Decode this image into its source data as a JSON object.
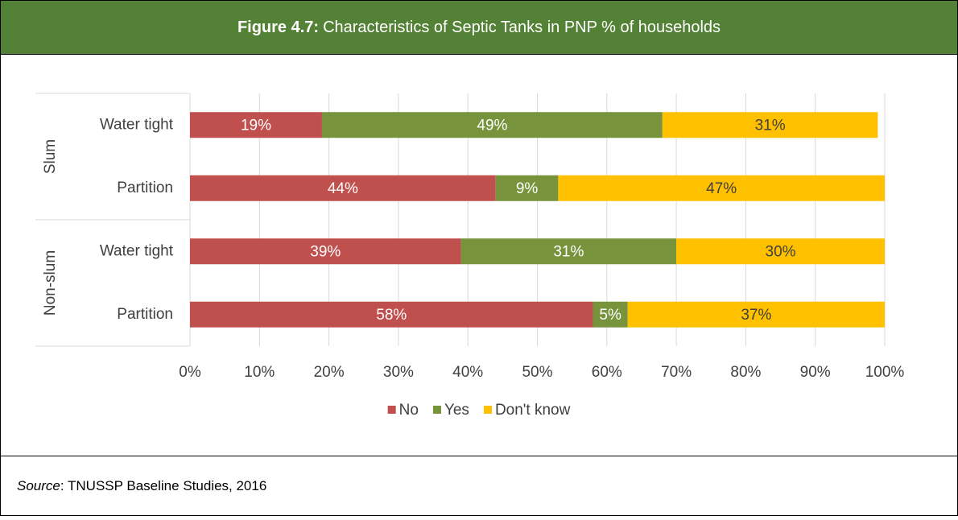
{
  "chart_data": {
    "type": "stacked_barh",
    "title_label": "Figure 4.7:",
    "title": "Characteristics of Septic Tanks in PNP % of households",
    "groups": [
      {
        "label": "Slum",
        "categories": [
          "Water tight",
          "Partition"
        ]
      },
      {
        "label": "Non-slum",
        "categories": [
          "Water tight",
          "Partition"
        ]
      }
    ],
    "series": [
      {
        "name": "No",
        "color": "#c0504d",
        "values": [
          19,
          44,
          39,
          58
        ],
        "value_labels": [
          "19%",
          "44%",
          "39%",
          "58%"
        ]
      },
      {
        "name": "Yes",
        "color": "#77933c",
        "values": [
          49,
          9,
          31,
          5
        ],
        "value_labels": [
          "49%",
          "9%",
          "31%",
          "5%"
        ]
      },
      {
        "name": "Don't know",
        "color": "#ffc000",
        "values": [
          31,
          47,
          30,
          37
        ],
        "value_labels": [
          "31%",
          "47%",
          "30%",
          "37%"
        ]
      }
    ],
    "xlim": [
      0,
      100
    ],
    "xticks": [
      {
        "value": 0,
        "label": "0%"
      },
      {
        "value": 10,
        "label": "10%"
      },
      {
        "value": 20,
        "label": "20%"
      },
      {
        "value": 30,
        "label": "30%"
      },
      {
        "value": 40,
        "label": "40%"
      },
      {
        "value": 50,
        "label": "50%"
      },
      {
        "value": 60,
        "label": "60%"
      },
      {
        "value": 70,
        "label": "70%"
      },
      {
        "value": 80,
        "label": "80%"
      },
      {
        "value": 90,
        "label": "90%"
      },
      {
        "value": 100,
        "label": "100%"
      }
    ],
    "grid": true,
    "legend": "bottom",
    "source_label": "Source",
    "source_text": ": TNUSSP Baseline Studies, 2016"
  }
}
